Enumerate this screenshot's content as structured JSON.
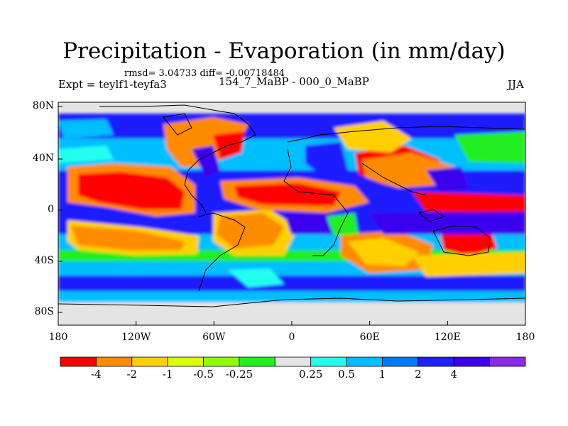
{
  "title": "Precipitation - Evaporation (in mm/day)",
  "stats_line": "rmsd= 3.04733 diff= -0.00718484",
  "experiment_label": "Expt = teylf1-teyfa3",
  "period_label": "154_7_MaBP - 000_0_MaBP",
  "season_label": "JJA",
  "map": {
    "lat_ticks": [
      "80N",
      "40N",
      "0",
      "40S",
      "80S"
    ],
    "lon_ticks": [
      "180",
      "120W",
      "60W",
      "0",
      "60E",
      "120E",
      "180"
    ]
  },
  "colorbar": {
    "colors": [
      "#fe0000",
      "#ff8b00",
      "#ffd000",
      "#d9ff00",
      "#90ff00",
      "#22ee22",
      "#e4e4e4",
      "#20ffee",
      "#00bfff",
      "#0078ff",
      "#1e1eff",
      "#3b00ee",
      "#8a2be2"
    ],
    "labels": [
      "-4",
      "-2",
      "-1",
      "-0.5",
      "-0.25",
      "0.25",
      "0.5",
      "1",
      "2",
      "4"
    ]
  }
}
